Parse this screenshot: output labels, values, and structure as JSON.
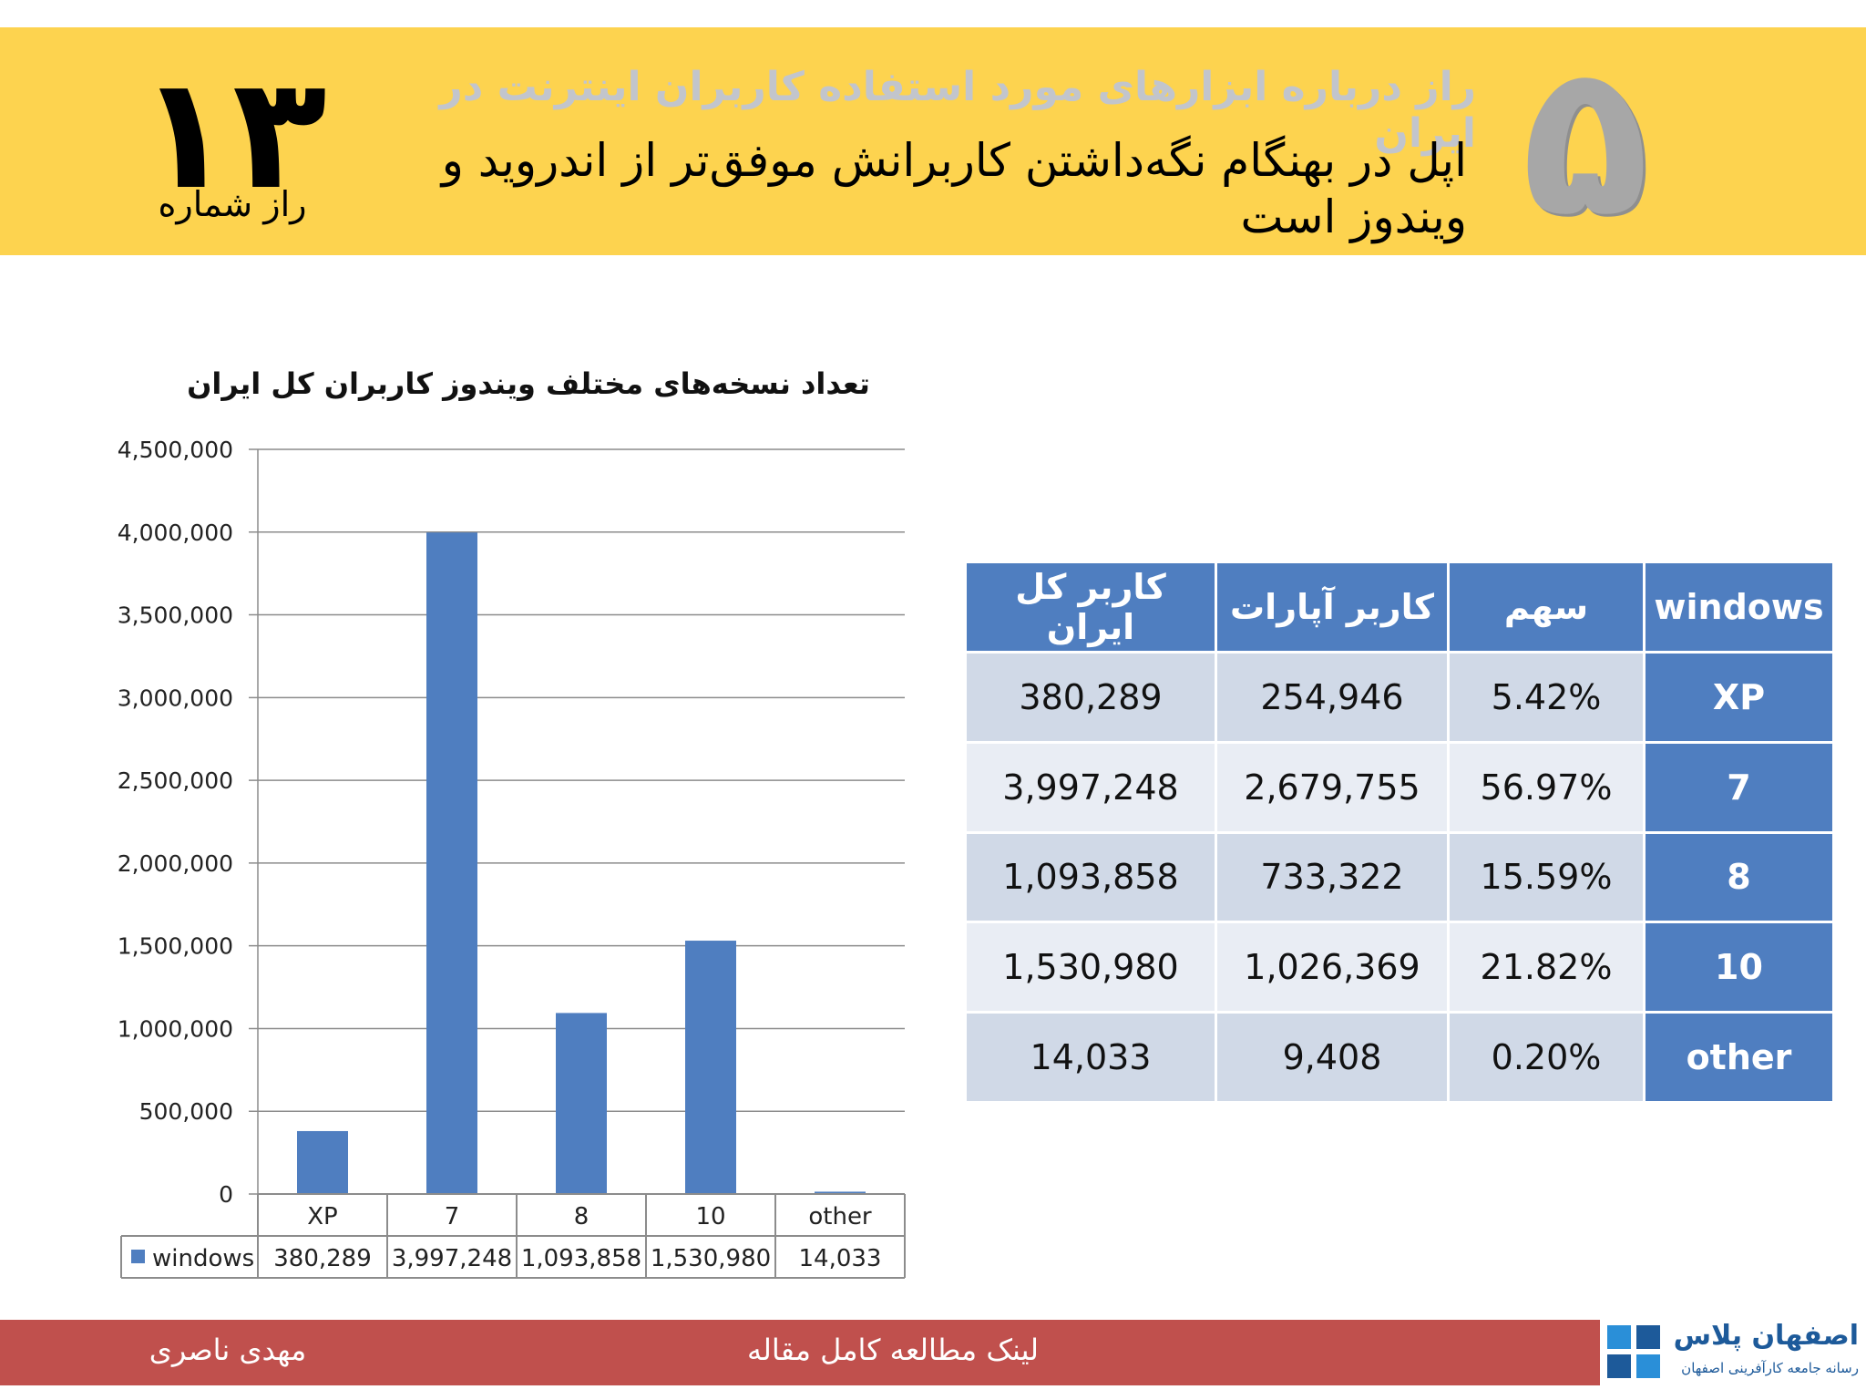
{
  "header": {
    "big_number": "۱۳",
    "secret_label": "راز شماره",
    "subject": "راز درباره ابزارهای مورد استفاده کاربران اینترنت در ایران",
    "title": "اپل در بهنگام نگه‌داشتن کاربرانش موفق‌تر از اندروید و ویندوز است",
    "secret_number": "۵"
  },
  "chart_data": {
    "type": "bar",
    "title": "تعداد نسخه‌های مختلف ویندوز کاربران کل ایران",
    "categories": [
      "XP",
      "7",
      "8",
      "10",
      "other"
    ],
    "series": [
      {
        "name": "windows",
        "values": [
          380289,
          3997248,
          1093858,
          1530980,
          14033
        ],
        "color": "#4f7ec0"
      }
    ],
    "data_table": [
      "380,289",
      "3,997,248",
      "1,093,858",
      "1,530,980",
      "14,033"
    ],
    "ylim": [
      0,
      4500000
    ],
    "yticks": [
      "0",
      "500,000",
      "1,000,000",
      "1,500,000",
      "2,000,000",
      "2,500,000",
      "3,000,000",
      "3,500,000",
      "4,000,000",
      "4,500,000"
    ],
    "grid": true,
    "legend": "bottom-left (in data table)"
  },
  "table": {
    "headers": [
      "کاربر کل ایران",
      "کاربر آپارات",
      "سهم",
      "windows"
    ],
    "rows": [
      {
        "total": "380,289",
        "aparat": "254,946",
        "share": "5.42%",
        "version": "XP"
      },
      {
        "total": "3,997,248",
        "aparat": "2,679,755",
        "share": "56.97%",
        "version": "7"
      },
      {
        "total": "1,093,858",
        "aparat": "733,322",
        "share": "15.59%",
        "version": "8"
      },
      {
        "total": "1,530,980",
        "aparat": "1,026,369",
        "share": "21.82%",
        "version": "10"
      },
      {
        "total": "14,033",
        "aparat": "9,408",
        "share": "0.20%",
        "version": "other"
      }
    ]
  },
  "footer": {
    "author": "مهدی ناصری",
    "link": "لینک مطالعه کامل مقاله"
  },
  "logo": {
    "name": "اصفهان پلاس",
    "tagline": "رسانه جامعه کارآفرینی اصفهان"
  },
  "colors": {
    "header_bg": "#fdd34f",
    "bar": "#4f7ec0",
    "footer_bg": "#c0504d",
    "table_header": "#4f7ec0"
  }
}
